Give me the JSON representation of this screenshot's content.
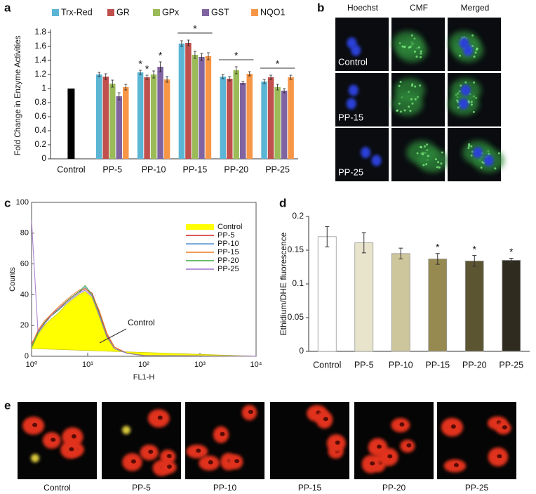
{
  "chart_data": [
    {
      "label": "a",
      "type": "bar",
      "ylabel": "Fold Change in Enzyme Activities",
      "categories": [
        "Control",
        "PP-5",
        "PP-10",
        "PP-15",
        "PP-20",
        "PP-25"
      ],
      "control_value": 1,
      "control_color": "#000000",
      "series": [
        {
          "name": "Trx-Red",
          "color": "#5bb5d5",
          "values": [
            null,
            1.2,
            1.23,
            1.64,
            1.17,
            1.1
          ],
          "errors": [
            null,
            0.03,
            0.03,
            0.04,
            0.03,
            0.03
          ]
        },
        {
          "name": "GR",
          "color": "#c0504d",
          "values": [
            null,
            1.17,
            1.16,
            1.65,
            1.14,
            1.16
          ],
          "errors": [
            null,
            0.04,
            0.03,
            0.04,
            0.03,
            0.03
          ]
        },
        {
          "name": "GPx",
          "color": "#9bbb59",
          "values": [
            null,
            1.07,
            1.2,
            1.48,
            1.26,
            1.02
          ],
          "errors": [
            null,
            0.05,
            0.05,
            0.05,
            0.05,
            0.04
          ]
        },
        {
          "name": "GST",
          "color": "#8064a2",
          "values": [
            null,
            0.89,
            1.31,
            1.45,
            1.08,
            0.97
          ],
          "errors": [
            null,
            0.05,
            0.07,
            0.05,
            0.02,
            0.03
          ]
        },
        {
          "name": "NQO1",
          "color": "#f79646",
          "values": [
            null,
            1.02,
            1.13,
            1.46,
            1.21,
            1.16
          ],
          "errors": [
            null,
            0.04,
            0.04,
            0.05,
            0.03,
            0.03
          ]
        }
      ],
      "annotations": [
        "*",
        "*",
        "*",
        "*",
        "*",
        "*"
      ],
      "ylim": [
        0,
        1.8
      ],
      "yticks": [
        0,
        0.2,
        0.4,
        0.6,
        0.8,
        1,
        1.2,
        1.4,
        1.6,
        1.8
      ]
    },
    {
      "label": "c",
      "type": "line",
      "xscale": "log",
      "xlabel": "FL1-H",
      "ylabel": "Counts",
      "x": [
        1,
        1.3,
        1.7,
        2.2,
        3,
        4,
        5,
        7,
        9,
        12,
        16,
        22,
        30,
        50,
        100,
        10000
      ],
      "series": [
        {
          "name": "Control",
          "color": "#ffff00",
          "fill": true,
          "values": [
            5,
            14,
            20,
            24,
            28,
            33,
            36,
            40,
            42,
            38,
            26,
            12,
            5,
            2,
            0.5,
            0
          ]
        },
        {
          "name": "PP-5",
          "color": "#d62020",
          "values": [
            8,
            16,
            22,
            27,
            31,
            35,
            38,
            42,
            44,
            41,
            29,
            14,
            6,
            2,
            0.5,
            0
          ]
        },
        {
          "name": "PP-10",
          "color": "#4f8fd0",
          "values": [
            6,
            15,
            21,
            26,
            30,
            34,
            37,
            41,
            45,
            39,
            27,
            13,
            5,
            2,
            0.5,
            0
          ]
        },
        {
          "name": "PP-15",
          "color": "#f07a20",
          "values": [
            7,
            17,
            23,
            27,
            32,
            36,
            39,
            43,
            44,
            40,
            30,
            15,
            6,
            2,
            0.5,
            0
          ]
        },
        {
          "name": "PP-20",
          "color": "#3aa83a",
          "values": [
            6,
            15,
            22,
            26,
            30,
            35,
            38,
            42,
            46,
            40,
            28,
            13,
            5,
            2,
            0.5,
            0
          ]
        },
        {
          "name": "PP-25",
          "color": "#a070c8",
          "values": [
            88,
            16,
            21,
            26,
            31,
            34,
            37,
            41,
            43,
            39,
            27,
            13,
            5,
            2,
            0.5,
            0
          ]
        }
      ],
      "annotation": "Control",
      "xlim": [
        1,
        10000
      ],
      "xticks": [
        {
          "value": 1,
          "label": "10⁰"
        },
        {
          "value": 10,
          "label": "10¹"
        },
        {
          "value": 100,
          "label": "10²"
        },
        {
          "value": 1000,
          "label": "10³"
        },
        {
          "value": 10000,
          "label": "10⁴"
        }
      ],
      "ylim": [
        0,
        100
      ],
      "yticks": [
        0,
        20,
        40,
        60,
        80,
        100
      ]
    },
    {
      "label": "d",
      "type": "bar",
      "ylabel": "Ethidium/DHE fluorescence",
      "categories": [
        "Control",
        "PP-5",
        "PP-10",
        "PP-15",
        "PP-20",
        "PP-25"
      ],
      "values": [
        0.17,
        0.161,
        0.145,
        0.137,
        0.134,
        0.135
      ],
      "errors": [
        0.015,
        0.015,
        0.008,
        0.008,
        0.008,
        0.003
      ],
      "colors": [
        "#ffffff",
        "#e8e4cc",
        "#cdc59b",
        "#968a50",
        "#5c5532",
        "#2f2c1f"
      ],
      "annotations": [
        "*",
        "*",
        "*"
      ],
      "ylim": [
        0,
        0.2
      ],
      "yticks": [
        0,
        0.05,
        0.1,
        0.15,
        0.2
      ]
    }
  ],
  "figure_b": {
    "label": "b",
    "columns": [
      "Hoechst",
      "CMF",
      "Merged"
    ],
    "rows": [
      "Control",
      "PP-15",
      "PP-25"
    ]
  },
  "figure_e": {
    "label": "e",
    "captions": [
      "Control",
      "PP-5",
      "PP-10",
      "PP-15",
      "PP-20",
      "PP-25"
    ]
  }
}
